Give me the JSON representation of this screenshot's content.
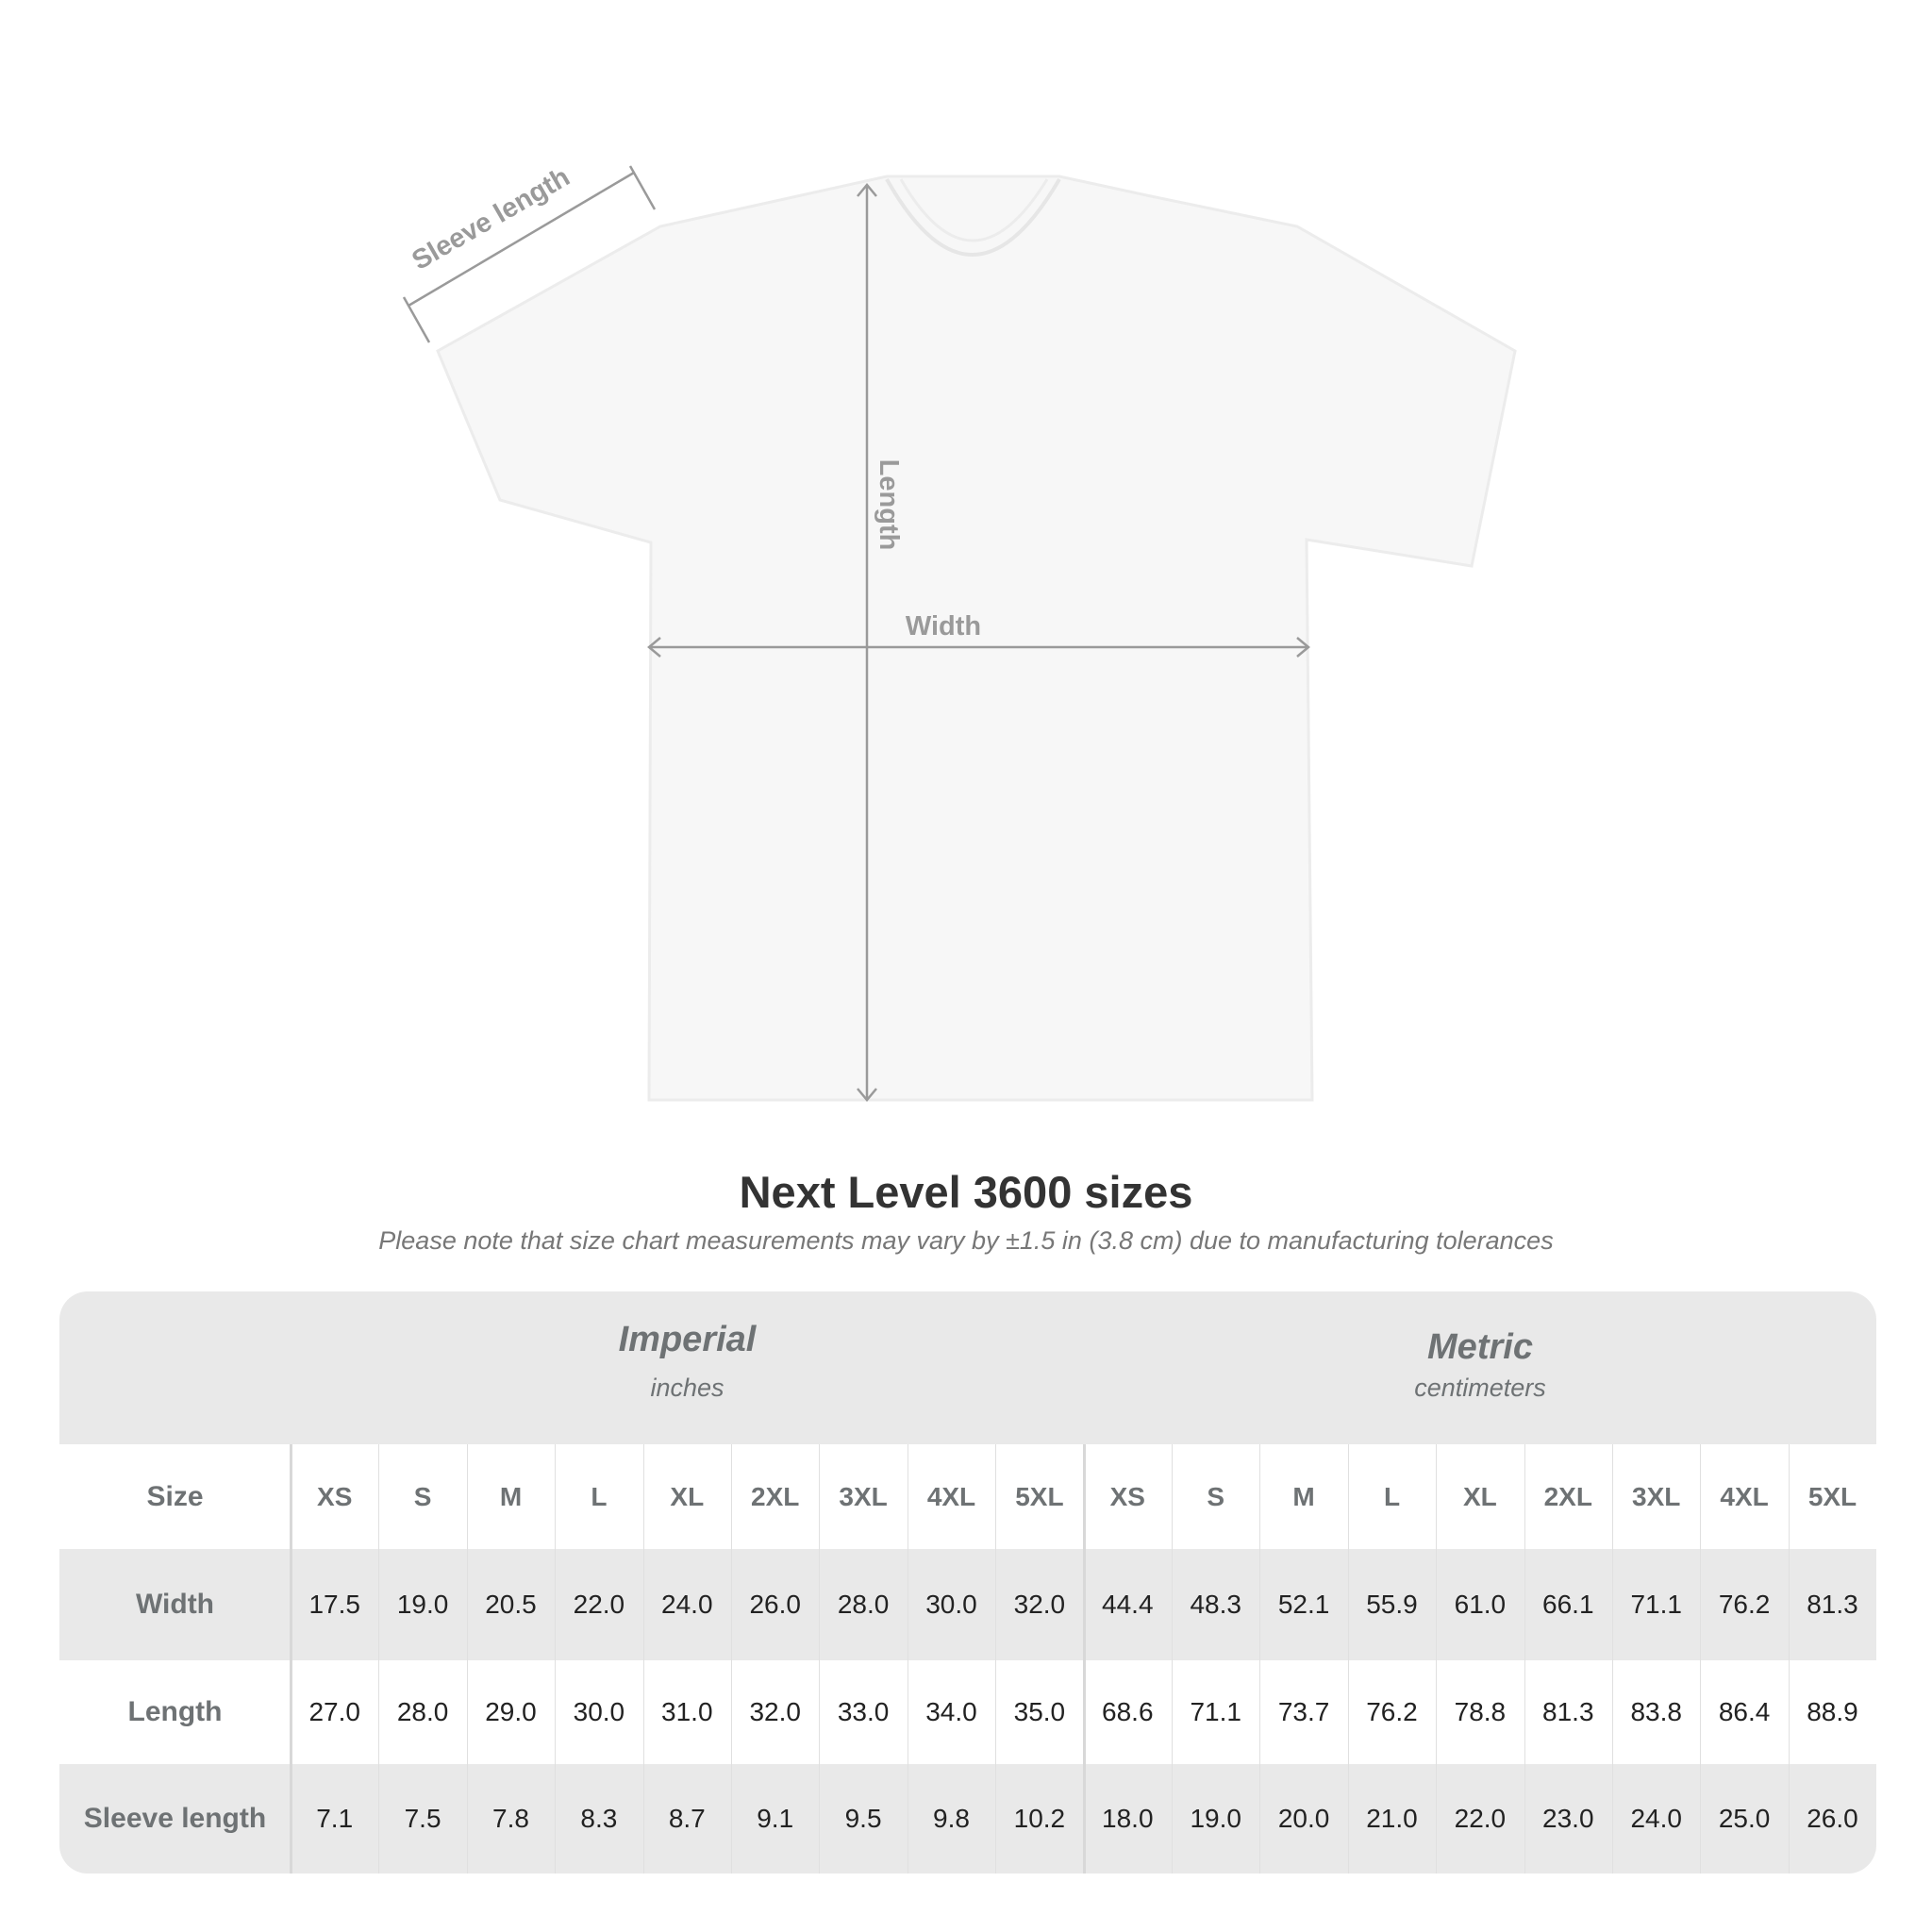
{
  "diagram": {
    "sleeve_label": "Sleeve length",
    "length_label": "Length",
    "width_label": "Width",
    "shirt_color": "#f7f7f7",
    "arrow_color": "#9a9a9a"
  },
  "title": "Next Level 3600 sizes",
  "subtitle": "Please note that size chart measurements may vary by ±1.5 in (3.8 cm) due to manufacturing tolerances",
  "table": {
    "groups": [
      {
        "name": "Imperial",
        "unit": "inches"
      },
      {
        "name": "Metric",
        "unit": "centimeters"
      }
    ],
    "size_label": "Size",
    "sizes": [
      "XS",
      "S",
      "M",
      "L",
      "XL",
      "2XL",
      "3XL",
      "4XL",
      "5XL"
    ],
    "rows": [
      {
        "label": "Width",
        "imperial": [
          "17.5",
          "19.0",
          "20.5",
          "22.0",
          "24.0",
          "26.0",
          "28.0",
          "30.0",
          "32.0"
        ],
        "metric": [
          "44.4",
          "48.3",
          "52.1",
          "55.9",
          "61.0",
          "66.1",
          "71.1",
          "76.2",
          "81.3"
        ]
      },
      {
        "label": "Length",
        "imperial": [
          "27.0",
          "28.0",
          "29.0",
          "30.0",
          "31.0",
          "32.0",
          "33.0",
          "34.0",
          "35.0"
        ],
        "metric": [
          "68.6",
          "71.1",
          "73.7",
          "76.2",
          "78.8",
          "81.3",
          "83.8",
          "86.4",
          "88.9"
        ]
      },
      {
        "label": "Sleeve length",
        "imperial": [
          "7.1",
          "7.5",
          "7.8",
          "8.3",
          "8.7",
          "9.1",
          "9.5",
          "9.8",
          "10.2"
        ],
        "metric": [
          "18.0",
          "19.0",
          "20.0",
          "21.0",
          "22.0",
          "23.0",
          "24.0",
          "25.0",
          "26.0"
        ]
      }
    ]
  }
}
